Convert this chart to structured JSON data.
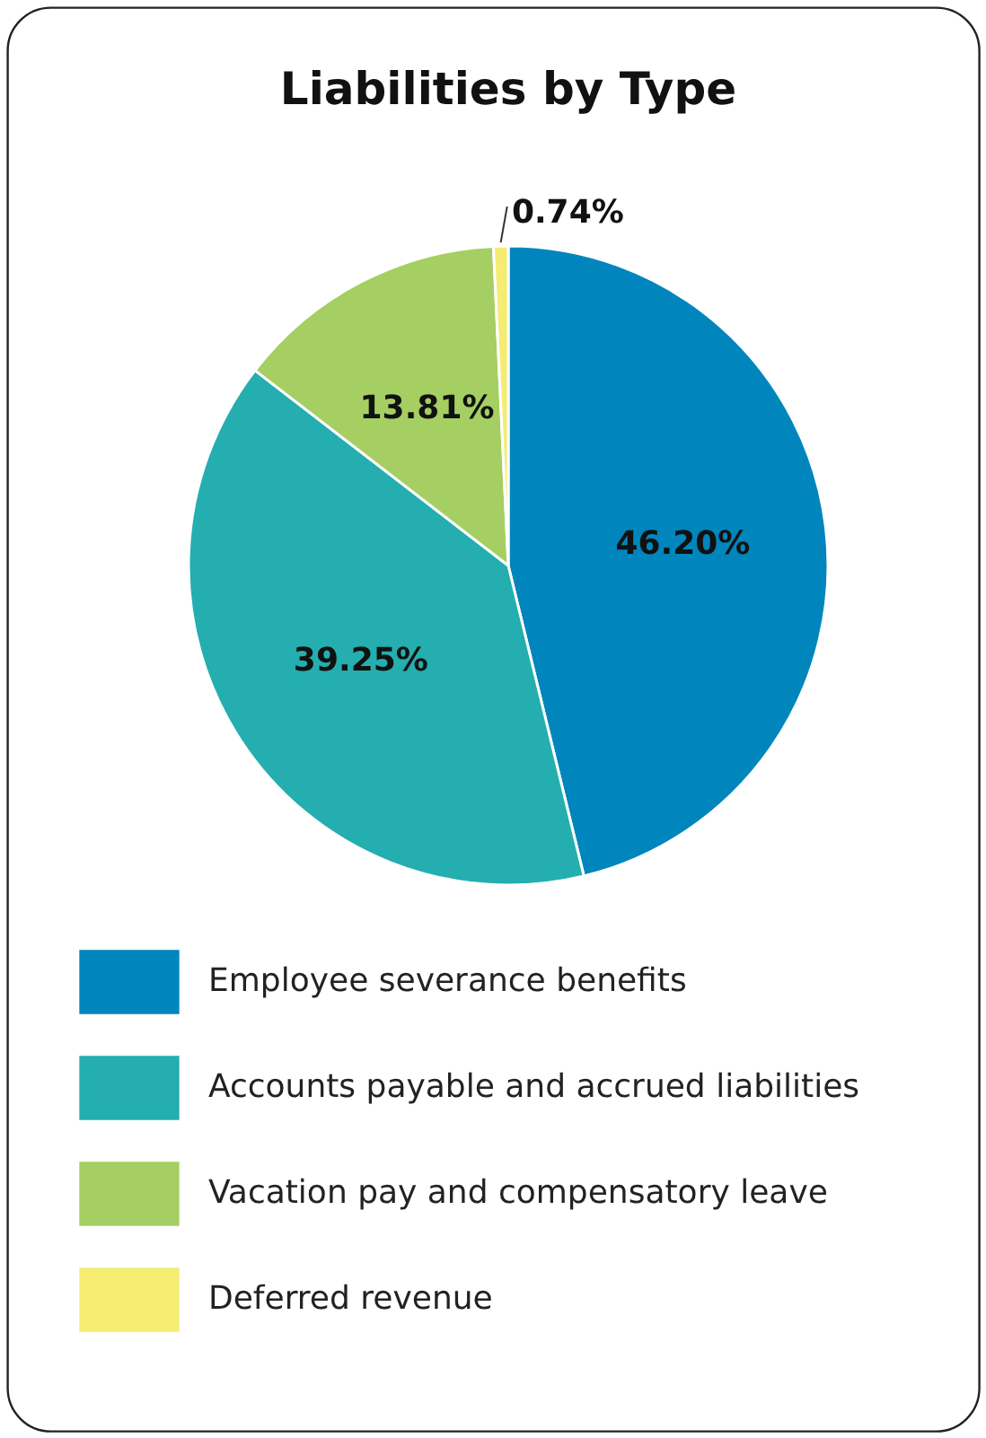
{
  "chart_data": {
    "type": "pie",
    "title": "Liabilities by Type",
    "categories": [
      "Employee severance benefits",
      "Accounts payable and accrued liabilities",
      "Vacation pay and compensatory leave",
      "Deferred revenue"
    ],
    "values": [
      46.2,
      39.25,
      13.81,
      0.74
    ],
    "colors": [
      "#0085bd",
      "#24aeb0",
      "#a5cf62",
      "#f5ec72"
    ],
    "value_labels": [
      "46.20%",
      "39.25%",
      "13.81%",
      "0.74%"
    ],
    "legend": "bottom"
  }
}
